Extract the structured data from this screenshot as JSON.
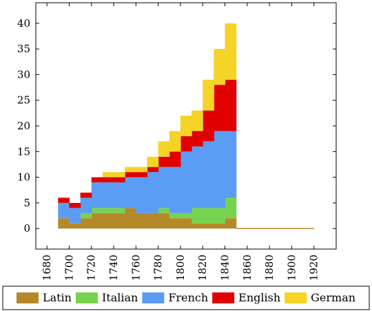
{
  "chart_data": {
    "type": "area",
    "stacked": true,
    "step": true,
    "title": "",
    "xlabel": "",
    "ylabel": "",
    "xlim": [
      1670,
      1940
    ],
    "ylim": [
      -4,
      44
    ],
    "x_ticks": [
      1680,
      1700,
      1720,
      1740,
      1760,
      1780,
      1800,
      1820,
      1840,
      1860,
      1880,
      1900,
      1920
    ],
    "x_tick_labels": [
      "1680",
      "1700",
      "1720",
      "1740",
      "1760",
      "1780",
      "1800",
      "1820",
      "1840",
      "1860",
      "1880",
      "1900",
      "1920"
    ],
    "y_ticks": [
      0,
      5,
      10,
      15,
      20,
      25,
      30,
      35,
      40
    ],
    "y_tick_labels": [
      "0",
      "5",
      "10",
      "15",
      "20",
      "25",
      "30",
      "35",
      "40"
    ],
    "grid": false,
    "legend_position": "bottom",
    "x": [
      1690,
      1700,
      1710,
      1720,
      1730,
      1740,
      1750,
      1760,
      1770,
      1780,
      1790,
      1800,
      1810,
      1820,
      1830,
      1840,
      1850,
      1860,
      1870,
      1880,
      1890,
      1900,
      1910
    ],
    "x_end": 1920,
    "series": [
      {
        "name": "Latin",
        "color": "#b5882a",
        "values": [
          2,
          1,
          2,
          3,
          3,
          3,
          4,
          3,
          3,
          3,
          2,
          2,
          1,
          1,
          1,
          2,
          0,
          0,
          0,
          0,
          0,
          0,
          0
        ]
      },
      {
        "name": "Italian",
        "color": "#77d34e",
        "values": [
          0,
          0,
          1,
          1,
          1,
          1,
          0,
          0,
          0,
          1,
          1,
          1,
          3,
          3,
          3,
          4,
          0,
          0,
          0,
          0,
          0,
          0,
          0
        ]
      },
      {
        "name": "French",
        "color": "#5b9cf5",
        "values": [
          3,
          3,
          3,
          5,
          5,
          5,
          6,
          7,
          8,
          8,
          9,
          12,
          12,
          13,
          15,
          13,
          0,
          0,
          0,
          0,
          0,
          0,
          0
        ]
      },
      {
        "name": "English",
        "color": "#e00000",
        "values": [
          1,
          1,
          1,
          1,
          1,
          1,
          1,
          1,
          1,
          2,
          3,
          3,
          3,
          6,
          9,
          10,
          0,
          0,
          0,
          0,
          0,
          0,
          0
        ]
      },
      {
        "name": "German",
        "color": "#f5d327",
        "values": [
          0,
          0,
          0,
          0,
          1,
          1,
          1,
          1,
          2,
          3,
          4,
          4,
          4,
          6,
          7,
          11,
          0,
          0,
          0,
          0,
          0,
          0,
          0
        ]
      }
    ]
  }
}
